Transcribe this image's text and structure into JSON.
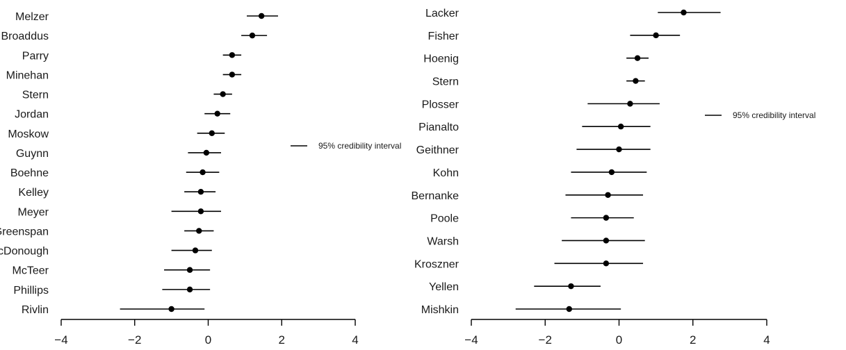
{
  "chart_data": [
    {
      "type": "dot-interval",
      "title": "",
      "xlabel": "",
      "ylabel": "",
      "xlim": [
        -4,
        4
      ],
      "xticks": [
        -4,
        -2,
        0,
        2,
        4
      ],
      "xtick_labels": [
        "−4",
        "−2",
        "0",
        "2",
        "4"
      ],
      "grid": false,
      "legend": {
        "label": "95% credibility interval",
        "placement": "right"
      },
      "series": [
        {
          "name": "Melzer",
          "estimate": 1.45,
          "low": 1.05,
          "high": 1.9
        },
        {
          "name": "Broaddus",
          "estimate": 1.2,
          "low": 0.9,
          "high": 1.6
        },
        {
          "name": "Parry",
          "estimate": 0.65,
          "low": 0.4,
          "high": 0.9
        },
        {
          "name": "Minehan",
          "estimate": 0.65,
          "low": 0.4,
          "high": 0.9
        },
        {
          "name": "Stern",
          "estimate": 0.4,
          "low": 0.15,
          "high": 0.65
        },
        {
          "name": "Jordan",
          "estimate": 0.25,
          "low": -0.1,
          "high": 0.6
        },
        {
          "name": "Moskow",
          "estimate": 0.1,
          "low": -0.3,
          "high": 0.45
        },
        {
          "name": "Guynn",
          "estimate": -0.05,
          "low": -0.55,
          "high": 0.35
        },
        {
          "name": "Boehne",
          "estimate": -0.15,
          "low": -0.6,
          "high": 0.3
        },
        {
          "name": "Kelley",
          "estimate": -0.2,
          "low": -0.65,
          "high": 0.2
        },
        {
          "name": "Meyer",
          "estimate": -0.2,
          "low": -1.0,
          "high": 0.35
        },
        {
          "name": "Greenspan",
          "estimate": -0.25,
          "low": -0.65,
          "high": 0.15
        },
        {
          "name": "McDonough",
          "estimate": -0.35,
          "low": -1.0,
          "high": 0.1
        },
        {
          "name": "McTeer",
          "estimate": -0.5,
          "low": -1.2,
          "high": 0.05
        },
        {
          "name": "Phillips",
          "estimate": -0.5,
          "low": -1.25,
          "high": 0.05
        },
        {
          "name": "Rivlin",
          "estimate": -1.0,
          "low": -2.4,
          "high": -0.1
        }
      ]
    },
    {
      "type": "dot-interval",
      "title": "",
      "xlabel": "",
      "ylabel": "",
      "xlim": [
        -4,
        4
      ],
      "xticks": [
        -4,
        -2,
        0,
        2,
        4
      ],
      "xtick_labels": [
        "−4",
        "−2",
        "0",
        "2",
        "4"
      ],
      "grid": false,
      "legend": {
        "label": "95% credibility interval",
        "placement": "right"
      },
      "series": [
        {
          "name": "Lacker",
          "estimate": 1.75,
          "low": 1.05,
          "high": 2.75
        },
        {
          "name": "Fisher",
          "estimate": 1.0,
          "low": 0.3,
          "high": 1.65
        },
        {
          "name": "Hoenig",
          "estimate": 0.5,
          "low": 0.2,
          "high": 0.8
        },
        {
          "name": "Stern",
          "estimate": 0.45,
          "low": 0.2,
          "high": 0.7
        },
        {
          "name": "Plosser",
          "estimate": 0.3,
          "low": -0.85,
          "high": 1.1
        },
        {
          "name": "Pianalto",
          "estimate": 0.05,
          "low": -1.0,
          "high": 0.85
        },
        {
          "name": "Geithner",
          "estimate": 0.0,
          "low": -1.15,
          "high": 0.85
        },
        {
          "name": "Kohn",
          "estimate": -0.2,
          "low": -1.3,
          "high": 0.75
        },
        {
          "name": "Bernanke",
          "estimate": -0.3,
          "low": -1.45,
          "high": 0.65
        },
        {
          "name": "Poole",
          "estimate": -0.35,
          "low": -1.3,
          "high": 0.4
        },
        {
          "name": "Warsh",
          "estimate": -0.35,
          "low": -1.55,
          "high": 0.7
        },
        {
          "name": "Kroszner",
          "estimate": -0.35,
          "low": -1.75,
          "high": 0.65
        },
        {
          "name": "Yellen",
          "estimate": -1.3,
          "low": -2.3,
          "high": -0.5
        },
        {
          "name": "Mishkin",
          "estimate": -1.35,
          "low": -2.8,
          "high": 0.05
        }
      ]
    }
  ],
  "colors": {
    "ink": "#000000",
    "text": "#1a1a1a"
  }
}
